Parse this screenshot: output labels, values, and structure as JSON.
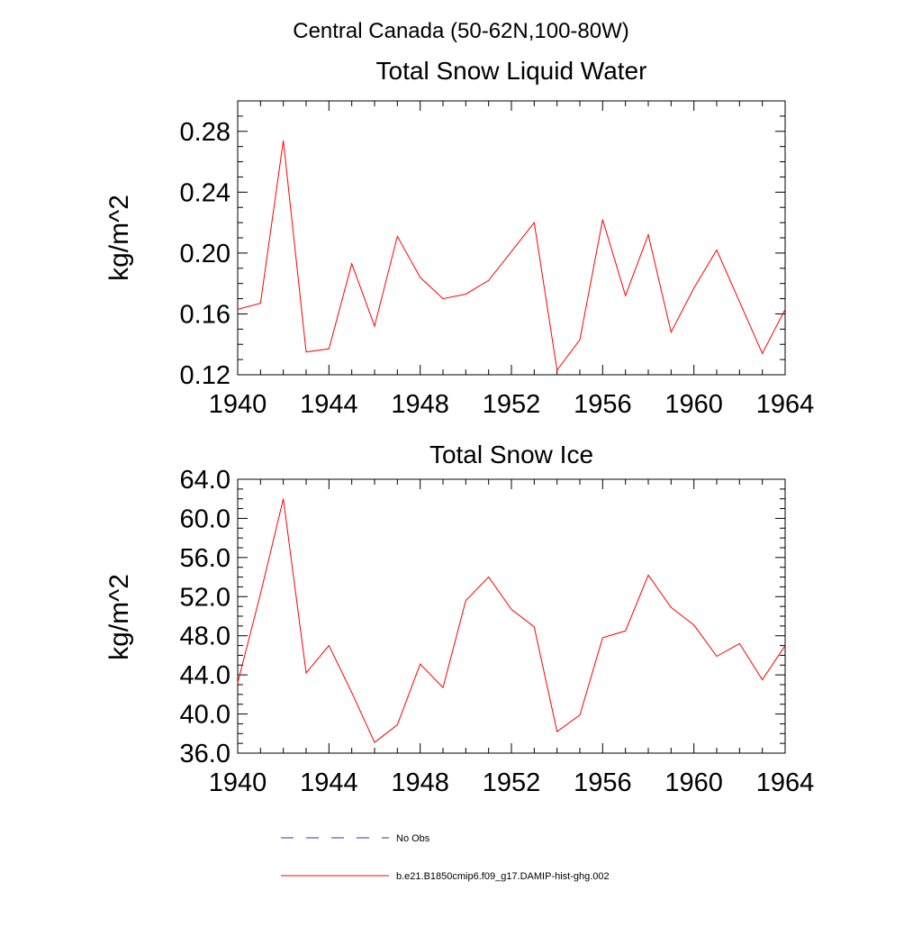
{
  "figure_title": "Central Canada (50-62N,100-80W)",
  "colors": {
    "model_series": "#ff0000",
    "obs_series": "#3333aa",
    "axis": "#000000"
  },
  "chart_data": [
    {
      "type": "line",
      "title": "Total Snow Liquid Water",
      "xlabel": "",
      "ylabel": "kg/m^2",
      "xlim": [
        1940,
        1964
      ],
      "ylim": [
        0.12,
        0.3
      ],
      "x_ticks": [
        1940,
        1944,
        1948,
        1952,
        1956,
        1960,
        1964
      ],
      "x_tick_labels": [
        "1940",
        "1944",
        "1948",
        "1952",
        "1956",
        "1960",
        "1964"
      ],
      "y_ticks": [
        0.12,
        0.16,
        0.2,
        0.24,
        0.28
      ],
      "y_tick_labels": [
        "0.12",
        "0.16",
        "0.20",
        "0.24",
        "0.28"
      ],
      "x_minor_step": 1,
      "y_minor_step": 0.01,
      "x": [
        1940,
        1941,
        1942,
        1943,
        1944,
        1945,
        1946,
        1947,
        1948,
        1949,
        1950,
        1951,
        1952,
        1953,
        1954,
        1955,
        1956,
        1957,
        1958,
        1959,
        1960,
        1961,
        1962,
        1963,
        1964
      ],
      "series": [
        {
          "name": "b.e21.B1850cmip6.f09_g17.DAMIP-hist-ghg.002",
          "values": [
            0.163,
            0.167,
            0.274,
            0.135,
            0.137,
            0.193,
            0.152,
            0.211,
            0.184,
            0.17,
            0.173,
            0.182,
            0.201,
            0.22,
            0.123,
            0.143,
            0.222,
            0.172,
            0.212,
            0.148,
            0.177,
            0.202,
            0.168,
            0.134,
            0.163
          ]
        }
      ]
    },
    {
      "type": "line",
      "title": "Total Snow Ice",
      "xlabel": "",
      "ylabel": "kg/m^2",
      "xlim": [
        1940,
        1964
      ],
      "ylim": [
        36.0,
        64.0
      ],
      "x_ticks": [
        1940,
        1944,
        1948,
        1952,
        1956,
        1960,
        1964
      ],
      "x_tick_labels": [
        "1940",
        "1944",
        "1948",
        "1952",
        "1956",
        "1960",
        "1964"
      ],
      "y_ticks": [
        36.0,
        40.0,
        44.0,
        48.0,
        52.0,
        56.0,
        60.0,
        64.0
      ],
      "y_tick_labels": [
        "36.0",
        "40.0",
        "44.0",
        "48.0",
        "52.0",
        "56.0",
        "60.0",
        "64.0"
      ],
      "x_minor_step": 1,
      "y_minor_step": 1,
      "x": [
        1940,
        1941,
        1942,
        1943,
        1944,
        1945,
        1946,
        1947,
        1948,
        1949,
        1950,
        1951,
        1952,
        1953,
        1954,
        1955,
        1956,
        1957,
        1958,
        1959,
        1960,
        1961,
        1962,
        1963,
        1964
      ],
      "series": [
        {
          "name": "b.e21.B1850cmip6.f09_g17.DAMIP-hist-ghg.002",
          "values": [
            43.2,
            52.3,
            62.0,
            44.2,
            47.0,
            42.2,
            37.1,
            38.9,
            45.1,
            42.7,
            51.6,
            54.0,
            50.7,
            48.9,
            38.2,
            39.9,
            47.8,
            48.5,
            54.2,
            50.9,
            49.1,
            45.9,
            47.2,
            43.5,
            47.0
          ]
        }
      ]
    }
  ],
  "legend": {
    "items": [
      {
        "label": "No Obs",
        "style": "dashed",
        "color": "#3333aa"
      },
      {
        "label": "b.e21.B1850cmip6.f09_g17.DAMIP-hist-ghg.002",
        "style": "solid",
        "color": "#ff0000"
      }
    ]
  }
}
